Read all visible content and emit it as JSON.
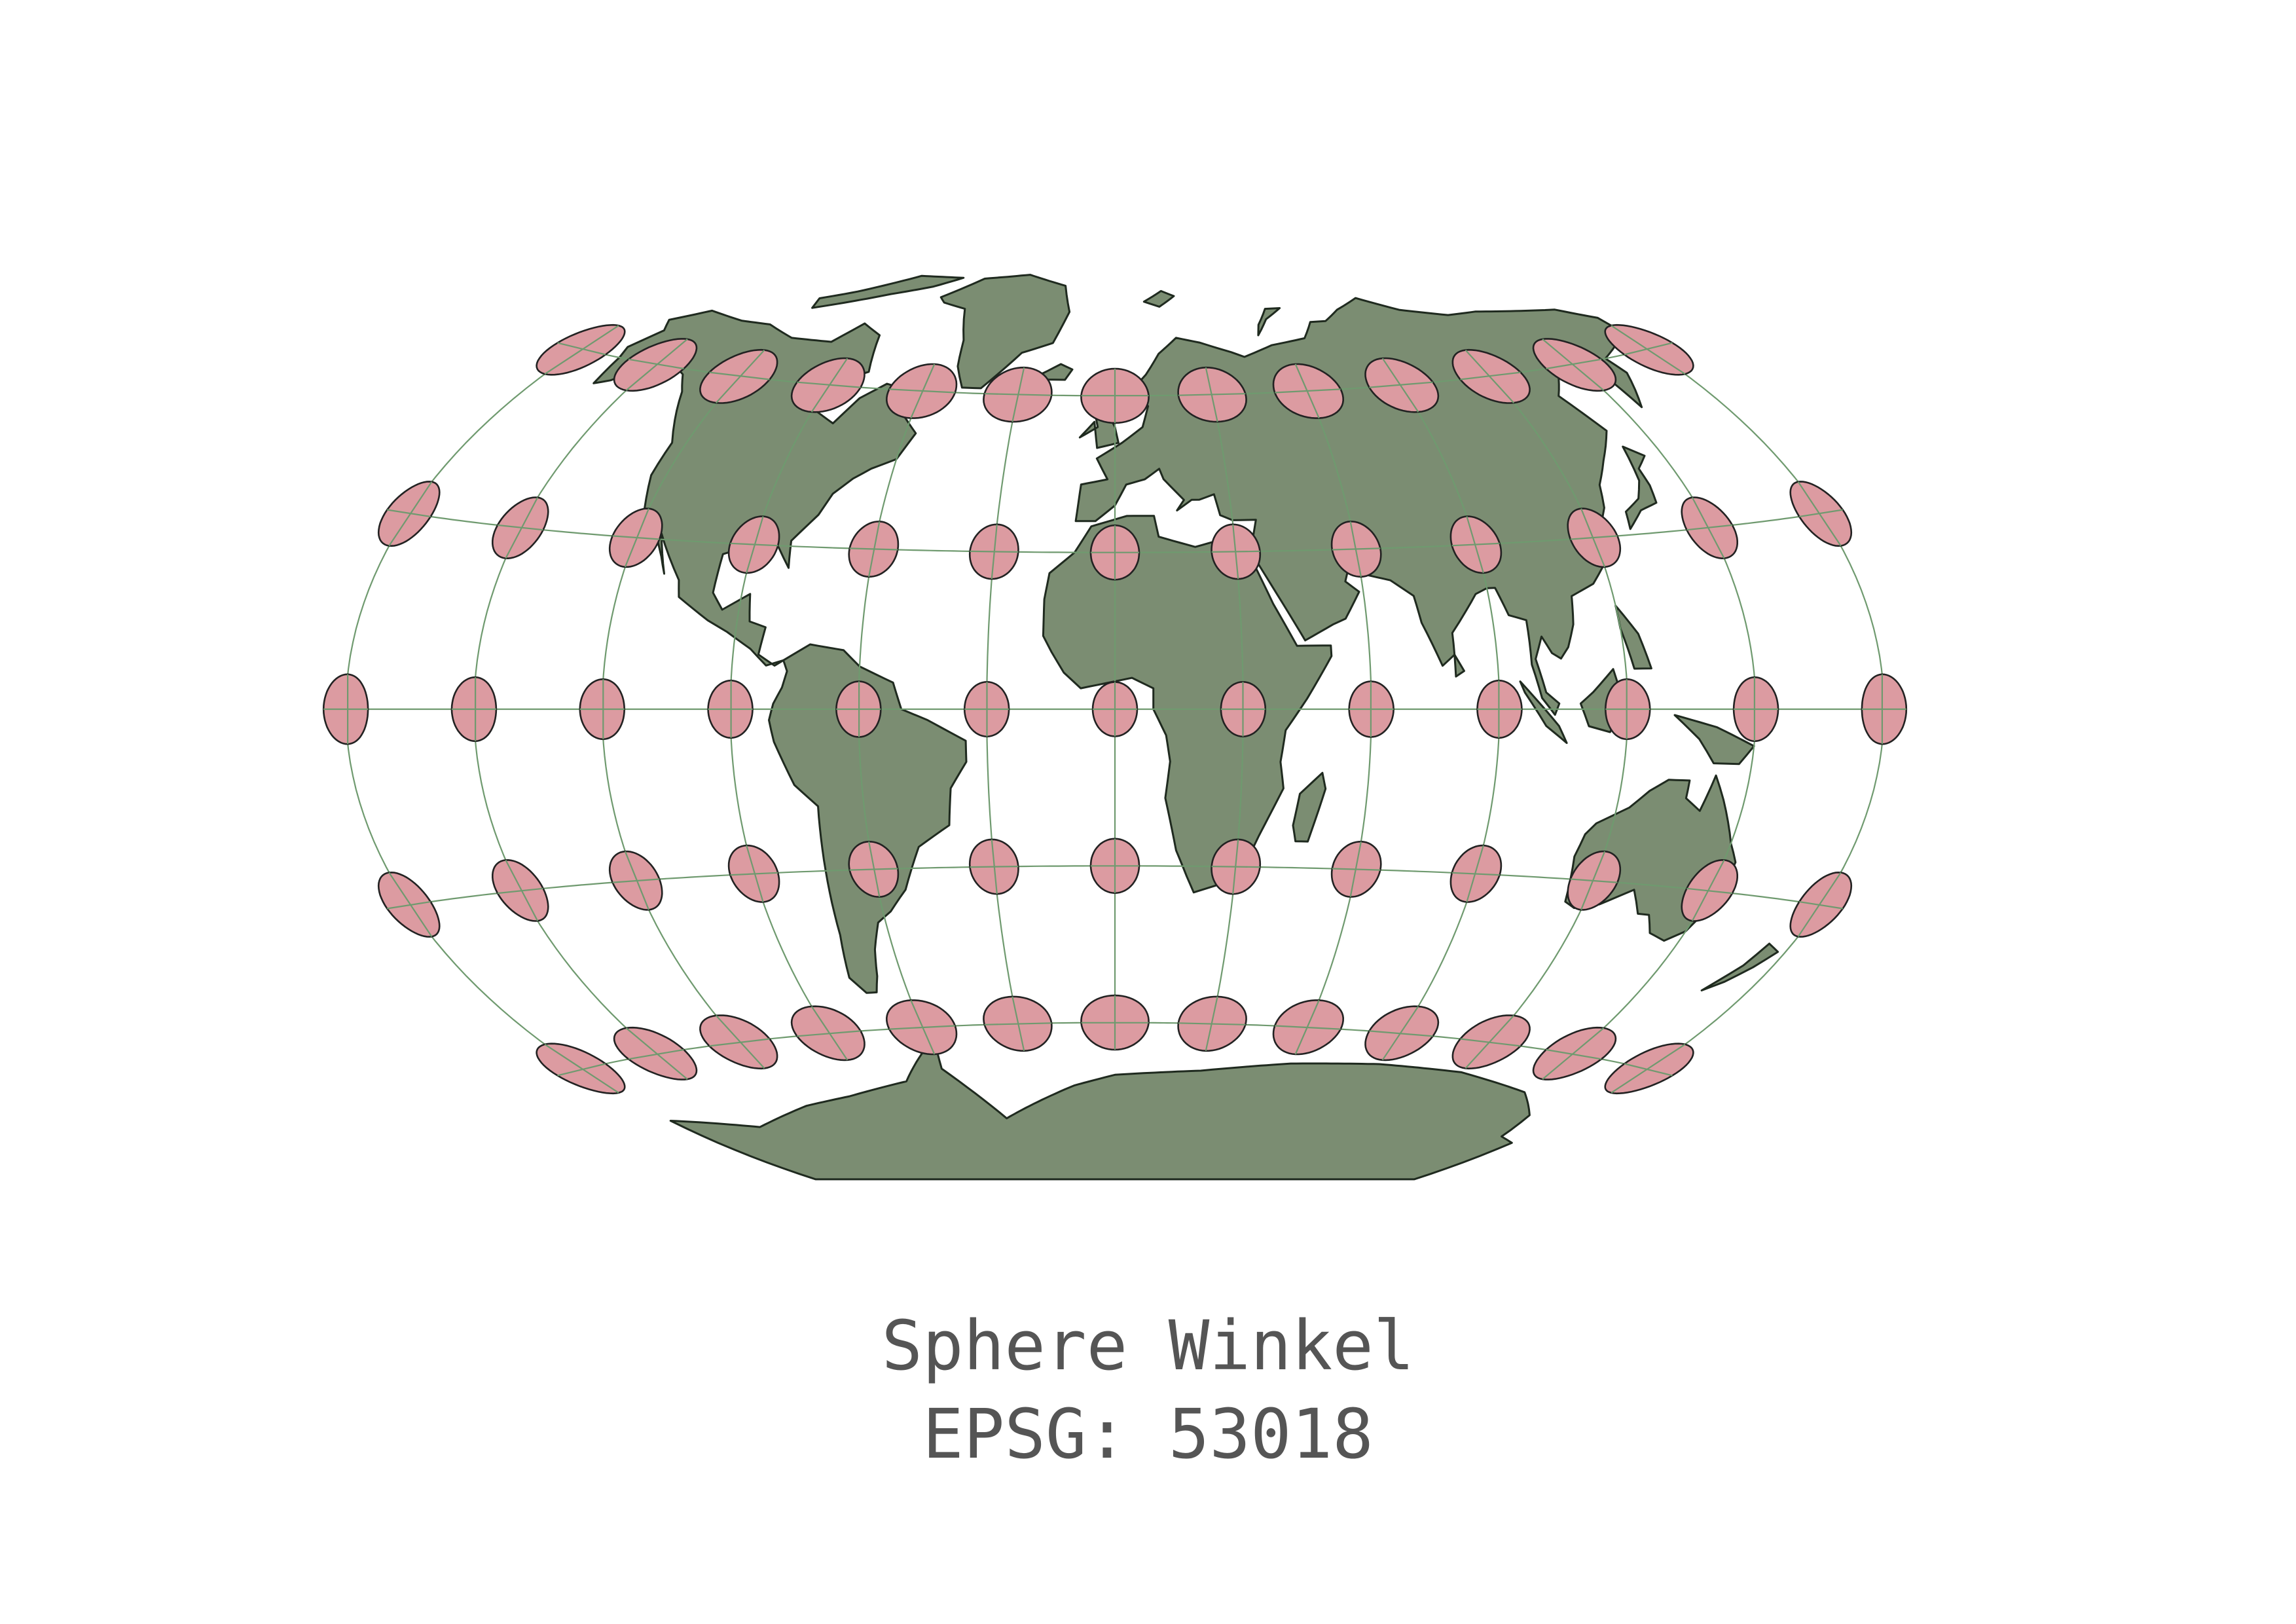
{
  "map": {
    "projection": "Sphere Winkel",
    "epsg_label": "EPSG: 53018",
    "indicatrix": {
      "latitudes": [
        60,
        30,
        0,
        -30,
        -60
      ],
      "longitudes": [
        -150,
        -120,
        -90,
        -60,
        -30,
        0,
        30,
        60,
        90,
        120,
        150,
        180
      ]
    },
    "colors": {
      "land": "#7b8d72",
      "coastline": "#1f2a1f",
      "graticule": "#6f9a6f",
      "indicatrix_fill": "#dc9ba1",
      "indicatrix_stroke": "#222222",
      "caption": "#555555",
      "background": "#ffffff"
    }
  }
}
